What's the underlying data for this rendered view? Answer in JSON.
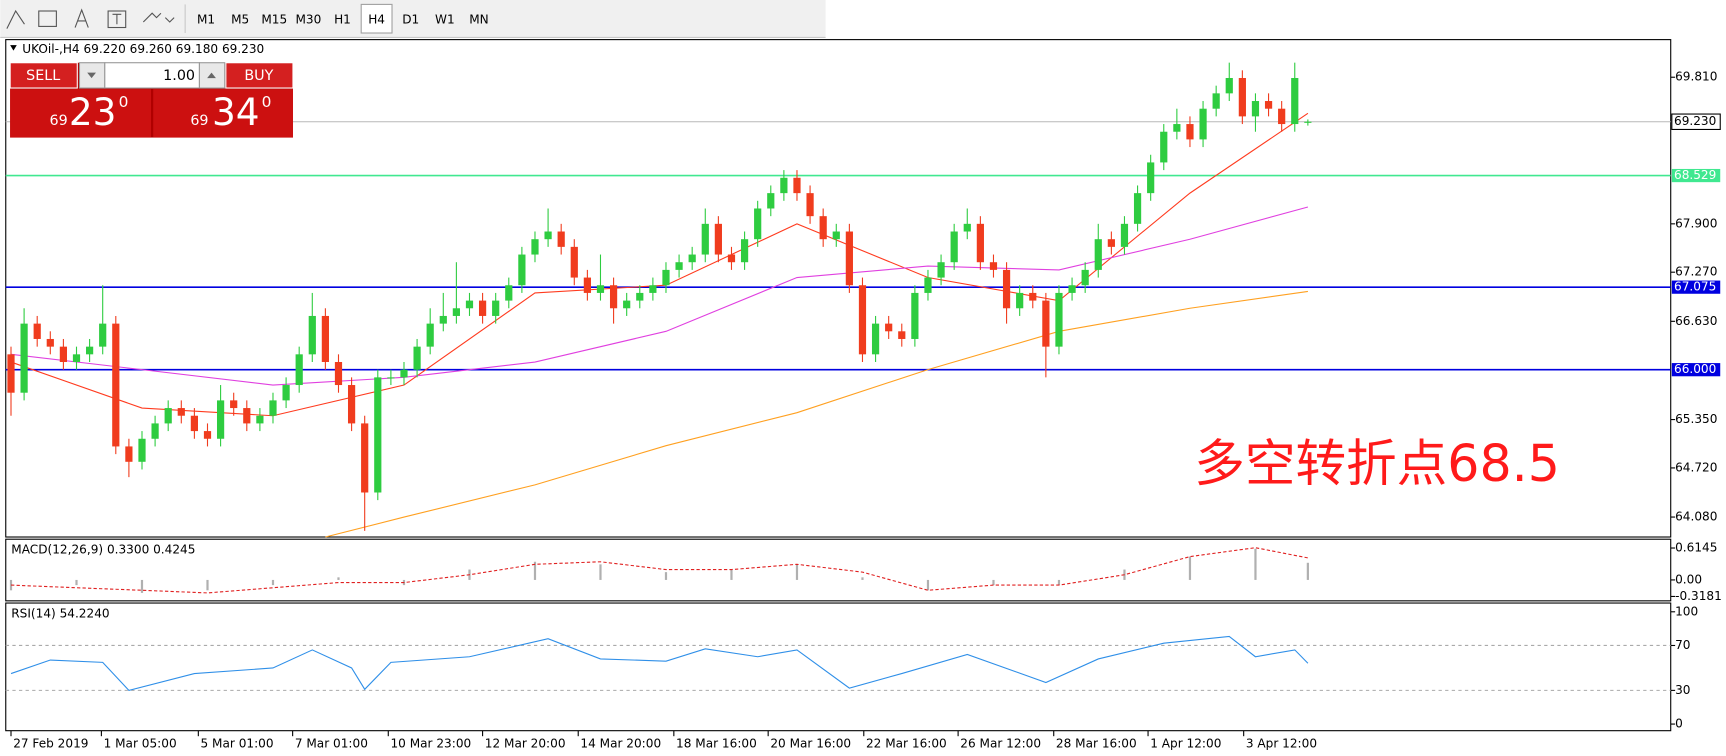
{
  "toolbar": {
    "timeframes": [
      "M1",
      "M5",
      "M15",
      "M30",
      "H1",
      "H4",
      "D1",
      "W1",
      "MN"
    ],
    "active_timeframe": "H4"
  },
  "trade_panel": {
    "sell": "SELL",
    "buy": "BUY",
    "lot": "1.00",
    "sell_prefix": "69",
    "sell_big": "23",
    "sell_sup": "0",
    "buy_prefix": "69",
    "buy_big": "34",
    "buy_sup": "0"
  },
  "chart_data": [
    {
      "type": "candlestick",
      "title": "UKOil-,H4  69.220 69.260 69.180 69.230",
      "up_color": "#2ecc40",
      "down_color": "#f03c1e",
      "xlim": [
        -0.4,
        126.7
      ],
      "ylim": [
        63.82,
        70.3
      ],
      "yticks": [
        {
          "value": 69.81,
          "label": "69.810"
        },
        {
          "value": 67.9,
          "label": "67.900"
        },
        {
          "value": 67.27,
          "label": "67.270"
        },
        {
          "value": 66.63,
          "label": "66.630"
        },
        {
          "value": 65.35,
          "label": "65.350"
        },
        {
          "value": 64.72,
          "label": "64.720"
        },
        {
          "value": 64.08,
          "label": "64.080"
        }
      ],
      "xticks": [
        {
          "value": 0,
          "label": "27 Feb 2019"
        },
        {
          "value": 6.9,
          "label": "1 Mar 05:00"
        },
        {
          "value": 14.3,
          "label": "5 Mar 01:00"
        },
        {
          "value": 21.5,
          "label": "7 Mar 01:00"
        },
        {
          "value": 28.8,
          "label": "10 Mar 23:00"
        },
        {
          "value": 36,
          "label": "12 Mar 20:00"
        },
        {
          "value": 43.3,
          "label": "14 Mar 20:00"
        },
        {
          "value": 50.6,
          "label": "18 Mar 16:00"
        },
        {
          "value": 57.8,
          "label": "20 Mar 16:00"
        },
        {
          "value": 65.1,
          "label": "22 Mar 16:00"
        },
        {
          "value": 72.3,
          "label": "26 Mar 12:00"
        },
        {
          "value": 79.6,
          "label": "28 Mar 16:00"
        },
        {
          "value": 86.8,
          "label": "1 Apr 12:00"
        },
        {
          "value": 94.1,
          "label": "3 Apr 12:00"
        }
      ],
      "open": [
        66.2,
        65.7,
        66.6,
        66.4,
        66.3,
        66.1,
        66.2,
        66.3,
        66.6,
        65.0,
        64.8,
        65.1,
        65.3,
        65.5,
        65.4,
        65.2,
        65.1,
        65.6,
        65.5,
        65.3,
        65.4,
        65.6,
        65.8,
        66.2,
        66.7,
        66.1,
        65.8,
        65.3,
        64.4,
        65.9,
        65.9,
        66.0,
        66.3,
        66.6,
        66.7,
        66.8,
        66.9,
        66.7,
        66.9,
        67.1,
        67.5,
        67.7,
        67.8,
        67.6,
        67.2,
        67.0,
        67.1,
        66.8,
        66.9,
        67.0,
        67.1,
        67.3,
        67.4,
        67.5,
        67.9,
        67.5,
        67.4,
        67.7,
        68.1,
        68.3,
        68.5,
        68.3,
        68.0,
        67.7,
        67.8,
        67.1,
        66.2,
        66.6,
        66.5,
        66.4,
        67.0,
        67.2,
        67.4,
        67.8,
        67.9,
        67.4,
        67.3,
        66.8,
        67.0,
        66.9,
        66.3,
        67.0,
        67.1,
        67.3,
        67.7,
        67.6,
        67.9,
        68.3,
        68.7,
        69.1,
        69.2,
        69.0,
        69.4,
        69.6,
        69.8,
        69.3,
        69.5,
        69.4,
        69.2,
        69.22
      ],
      "high": [
        66.3,
        66.8,
        66.7,
        66.5,
        66.4,
        66.3,
        66.4,
        67.1,
        66.7,
        65.1,
        65.2,
        65.4,
        65.6,
        65.6,
        65.5,
        65.3,
        65.8,
        65.7,
        65.6,
        65.5,
        65.7,
        65.9,
        66.3,
        67.0,
        66.8,
        66.2,
        65.9,
        65.4,
        66.0,
        66.0,
        66.1,
        66.4,
        66.8,
        67.0,
        67.4,
        67.0,
        67.0,
        67.0,
        67.2,
        67.6,
        67.8,
        68.1,
        67.9,
        67.7,
        67.3,
        67.5,
        67.2,
        67.0,
        67.1,
        67.2,
        67.4,
        67.5,
        67.6,
        68.1,
        68.0,
        67.6,
        67.8,
        68.2,
        68.4,
        68.6,
        68.6,
        68.4,
        68.1,
        67.9,
        67.9,
        67.2,
        66.7,
        66.7,
        66.6,
        67.1,
        67.3,
        67.5,
        67.9,
        68.1,
        68.0,
        67.5,
        67.4,
        67.1,
        67.1,
        67.0,
        67.1,
        67.2,
        67.4,
        67.9,
        67.8,
        68.0,
        68.4,
        68.8,
        69.2,
        69.4,
        69.3,
        69.5,
        69.7,
        70.0,
        69.9,
        69.6,
        69.6,
        69.5,
        70.0,
        69.26
      ],
      "low": [
        65.4,
        65.6,
        66.3,
        66.2,
        66.0,
        66.0,
        66.1,
        66.2,
        64.9,
        64.6,
        64.7,
        65.0,
        65.2,
        65.3,
        65.1,
        65.0,
        65.0,
        65.4,
        65.2,
        65.2,
        65.3,
        65.5,
        65.7,
        66.1,
        66.0,
        65.7,
        65.2,
        63.9,
        64.3,
        65.8,
        65.8,
        65.9,
        66.2,
        66.5,
        66.6,
        66.7,
        66.6,
        66.6,
        66.8,
        67.0,
        67.4,
        67.6,
        67.5,
        67.1,
        66.9,
        66.9,
        66.6,
        66.7,
        66.8,
        66.9,
        67.0,
        67.2,
        67.3,
        67.4,
        67.4,
        67.3,
        67.3,
        67.6,
        68.0,
        68.2,
        68.2,
        67.9,
        67.6,
        67.6,
        67.0,
        66.1,
        66.1,
        66.4,
        66.3,
        66.3,
        66.9,
        67.1,
        67.3,
        67.7,
        67.3,
        67.2,
        66.6,
        66.7,
        66.8,
        65.9,
        66.2,
        66.9,
        67.0,
        67.2,
        67.5,
        67.5,
        67.8,
        68.2,
        68.6,
        69.0,
        68.9,
        68.9,
        69.3,
        69.5,
        69.2,
        69.1,
        69.3,
        69.1,
        69.1,
        69.18
      ],
      "close": [
        65.7,
        66.6,
        66.4,
        66.3,
        66.1,
        66.2,
        66.3,
        66.6,
        65.0,
        64.8,
        65.1,
        65.3,
        65.5,
        65.4,
        65.2,
        65.1,
        65.6,
        65.5,
        65.3,
        65.4,
        65.6,
        65.8,
        66.2,
        66.7,
        66.1,
        65.8,
        65.3,
        64.4,
        65.9,
        65.9,
        66.0,
        66.3,
        66.6,
        66.7,
        66.8,
        66.9,
        66.7,
        66.9,
        67.1,
        67.5,
        67.7,
        67.8,
        67.6,
        67.2,
        67.0,
        67.1,
        66.8,
        66.9,
        67.0,
        67.1,
        67.3,
        67.4,
        67.5,
        67.9,
        67.5,
        67.4,
        67.7,
        68.1,
        68.3,
        68.5,
        68.3,
        68.0,
        67.7,
        67.8,
        67.1,
        66.2,
        66.6,
        66.5,
        66.4,
        67.0,
        67.2,
        67.4,
        67.8,
        67.9,
        67.4,
        67.3,
        66.8,
        67.0,
        66.9,
        66.3,
        67.0,
        67.1,
        67.3,
        67.7,
        67.6,
        67.9,
        68.3,
        68.7,
        69.1,
        69.2,
        69.0,
        69.4,
        69.6,
        69.8,
        69.3,
        69.5,
        69.4,
        69.2,
        69.8,
        69.23
      ],
      "overlays": [
        {
          "color": "#ff3b1f",
          "x": [
            0,
            10,
            20,
            30,
            40,
            50,
            60,
            70,
            80,
            90,
            99
          ],
          "values": [
            66.1,
            65.5,
            65.4,
            65.8,
            67.0,
            67.1,
            67.9,
            67.2,
            66.9,
            68.3,
            69.34
          ]
        },
        {
          "color": "#e040e0",
          "x": [
            0,
            10,
            20,
            30,
            40,
            50,
            60,
            70,
            80,
            90,
            99
          ],
          "values": [
            66.2,
            66.0,
            65.8,
            65.9,
            66.1,
            66.5,
            67.2,
            67.35,
            67.3,
            67.7,
            68.12
          ]
        },
        {
          "color": "#ffa020",
          "x": [
            24,
            30,
            40,
            50,
            60,
            70,
            80,
            90,
            99
          ],
          "values": [
            63.82,
            64.08,
            64.5,
            65.01,
            65.44,
            66.0,
            66.5,
            66.8,
            67.02
          ]
        }
      ],
      "hlines": [
        {
          "value": 68.529,
          "color": "#40e890"
        },
        {
          "value": 67.075,
          "color": "#0000e0"
        },
        {
          "value": 66,
          "label": "66.000",
          "color": "#0000e0"
        }
      ],
      "current_price": {
        "value": 69.23,
        "label": "69.230"
      },
      "annotation": "多空转折点68.5"
    },
    {
      "type": "macd",
      "title": "MACD(12,26,9) 0.3300 0.4245",
      "ylim": [
        -0.4026,
        0.784
      ],
      "yticks": [
        0.6145,
        {
          "value": 0,
          "label": "0.00"
        },
        -0.3181
      ],
      "x": [
        0,
        5,
        10,
        15,
        20,
        25,
        30,
        35,
        40,
        45,
        50,
        55,
        60,
        65,
        70,
        75,
        80,
        85,
        90,
        95,
        99
      ],
      "histogram": [
        -0.2,
        -0.1,
        -0.25,
        -0.2,
        -0.1,
        0.05,
        -0.1,
        0.2,
        0.35,
        0.3,
        0.15,
        0.2,
        0.3,
        0.05,
        -0.2,
        -0.1,
        -0.1,
        0.2,
        0.45,
        0.6,
        0.33
      ],
      "signal": [
        -0.1,
        -0.15,
        -0.2,
        -0.25,
        -0.15,
        -0.05,
        -0.05,
        0.1,
        0.3,
        0.35,
        0.2,
        0.2,
        0.3,
        0.15,
        -0.2,
        -0.1,
        -0.1,
        0.1,
        0.45,
        0.62,
        0.4245
      ],
      "histogram_color": "#b0b0b0",
      "signal_color": "#e02020"
    },
    {
      "type": "line",
      "title": "RSI(14) 54.2240",
      "ylim": [
        -5.9,
        107.8
      ],
      "yticks": [
        100,
        70,
        30,
        0
      ],
      "levels": [
        70,
        30
      ],
      "color": "#2f8fe8",
      "x": [
        0,
        3,
        7,
        9,
        14,
        20,
        23,
        26,
        27,
        29,
        35,
        41,
        45,
        50,
        53,
        57,
        60,
        64,
        68,
        73,
        79,
        83,
        88,
        93,
        95,
        98,
        99
      ],
      "values": [
        45,
        57,
        55,
        30,
        45,
        50,
        66,
        50,
        31,
        55,
        60,
        76,
        58,
        56,
        67,
        60,
        66,
        32,
        45,
        62,
        37,
        58,
        72,
        78,
        60,
        66,
        54.224
      ]
    }
  ]
}
